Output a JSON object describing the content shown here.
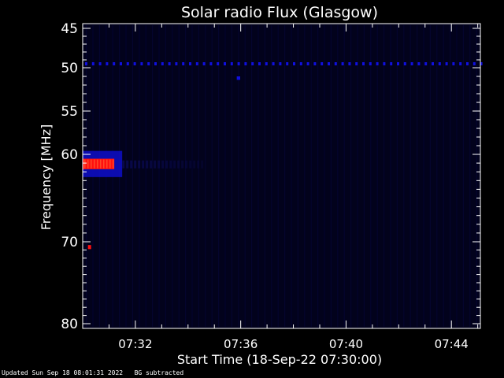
{
  "chart_data": {
    "type": "heatmap",
    "title": "Solar radio Flux (Glasgow)",
    "xlabel": "Start Time (18-Sep-22 07:30:00)",
    "ylabel": "Frequency [MHz]",
    "y_reversed": true,
    "ylim": [
      45,
      80
    ],
    "yticks": [
      45,
      50,
      55,
      60,
      70,
      80
    ],
    "xlim_minutes": [
      0,
      15.1
    ],
    "xticks": [
      {
        "minute": 2,
        "label": "07:32"
      },
      {
        "minute": 6,
        "label": "07:36"
      },
      {
        "minute": 10,
        "label": "07:40"
      },
      {
        "minute": 14,
        "label": "07:44"
      }
    ],
    "grid": false,
    "colors": {
      "background": "#000000",
      "plot_bg": "#02021c",
      "low": "#0a0a50",
      "mid": "#1010e0",
      "high": "#ff1010",
      "axis": "#ffffff"
    },
    "features": [
      {
        "name": "burst-core",
        "t_start_min": 0.0,
        "t_end_min": 1.2,
        "f_start_mhz": 60.5,
        "f_end_mhz": 61.7,
        "level": "high"
      },
      {
        "name": "burst-halo",
        "t_start_min": 0.0,
        "t_end_min": 1.5,
        "f_start_mhz": 59.6,
        "f_end_mhz": 62.6,
        "level": "mid"
      },
      {
        "name": "burst-tail",
        "t_start_min": 1.5,
        "t_end_min": 4.5,
        "f_start_mhz": 60.7,
        "f_end_mhz": 61.6,
        "level": "low"
      },
      {
        "name": "rfi-line",
        "t_start_min": 0.0,
        "t_end_min": 15.1,
        "f_start_mhz": 49.3,
        "f_end_mhz": 49.7,
        "level": "mid",
        "dashed": true
      },
      {
        "name": "spot",
        "t_start_min": 5.85,
        "t_end_min": 5.98,
        "f_start_mhz": 51.0,
        "f_end_mhz": 51.4,
        "level": "mid"
      },
      {
        "name": "spot-70",
        "t_start_min": 0.2,
        "t_end_min": 0.32,
        "f_start_mhz": 70.4,
        "f_end_mhz": 70.9,
        "level": "high"
      }
    ]
  },
  "footer": "Updated Sun Sep 18 08:01:31 2022   BG subtracted"
}
